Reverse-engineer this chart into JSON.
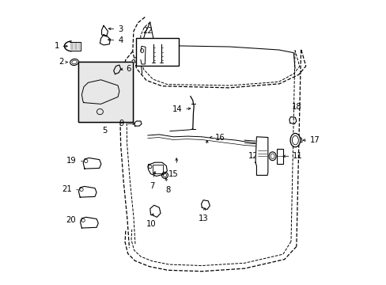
{
  "bg_color": "#ffffff",
  "lc": "#000000",
  "door_outer": {
    "x": [
      0.335,
      0.31,
      0.295,
      0.295,
      0.31,
      0.34,
      0.39,
      0.62,
      0.8,
      0.87,
      0.895,
      0.88,
      0.86,
      0.335
    ],
    "y": [
      0.935,
      0.92,
      0.89,
      0.82,
      0.76,
      0.72,
      0.7,
      0.695,
      0.71,
      0.74,
      0.77,
      0.82,
      0.13,
      0.935
    ]
  },
  "door_inner": {
    "x": [
      0.35,
      0.33,
      0.315,
      0.315,
      0.33,
      0.36,
      0.405,
      0.625,
      0.8,
      0.855,
      0.875,
      0.86,
      0.845,
      0.35
    ],
    "y": [
      0.915,
      0.905,
      0.875,
      0.815,
      0.765,
      0.73,
      0.715,
      0.71,
      0.722,
      0.748,
      0.775,
      0.82,
      0.155,
      0.915
    ]
  },
  "door_bottom_curve": {
    "x": [
      0.86,
      0.82,
      0.68,
      0.55,
      0.42,
      0.36,
      0.315,
      0.295
    ],
    "y": [
      0.13,
      0.09,
      0.06,
      0.05,
      0.055,
      0.07,
      0.09,
      0.12
    ]
  },
  "hinge_left_outer": {
    "x": [
      0.295,
      0.27,
      0.25,
      0.24,
      0.245,
      0.26,
      0.28,
      0.295
    ],
    "y": [
      0.82,
      0.79,
      0.72,
      0.62,
      0.48,
      0.36,
      0.22,
      0.12
    ]
  },
  "hinge_left_inner": {
    "x": [
      0.315,
      0.295,
      0.278,
      0.27,
      0.272,
      0.285,
      0.3,
      0.315
    ],
    "y": [
      0.815,
      0.788,
      0.72,
      0.625,
      0.485,
      0.365,
      0.225,
      0.125
    ]
  },
  "window_outline": {
    "x": [
      0.345,
      0.33,
      0.34,
      0.38,
      0.62,
      0.79,
      0.85,
      0.855,
      0.845,
      0.345
    ],
    "y": [
      0.715,
      0.76,
      0.82,
      0.87,
      0.87,
      0.855,
      0.835,
      0.79,
      0.715,
      0.715
    ]
  }
}
